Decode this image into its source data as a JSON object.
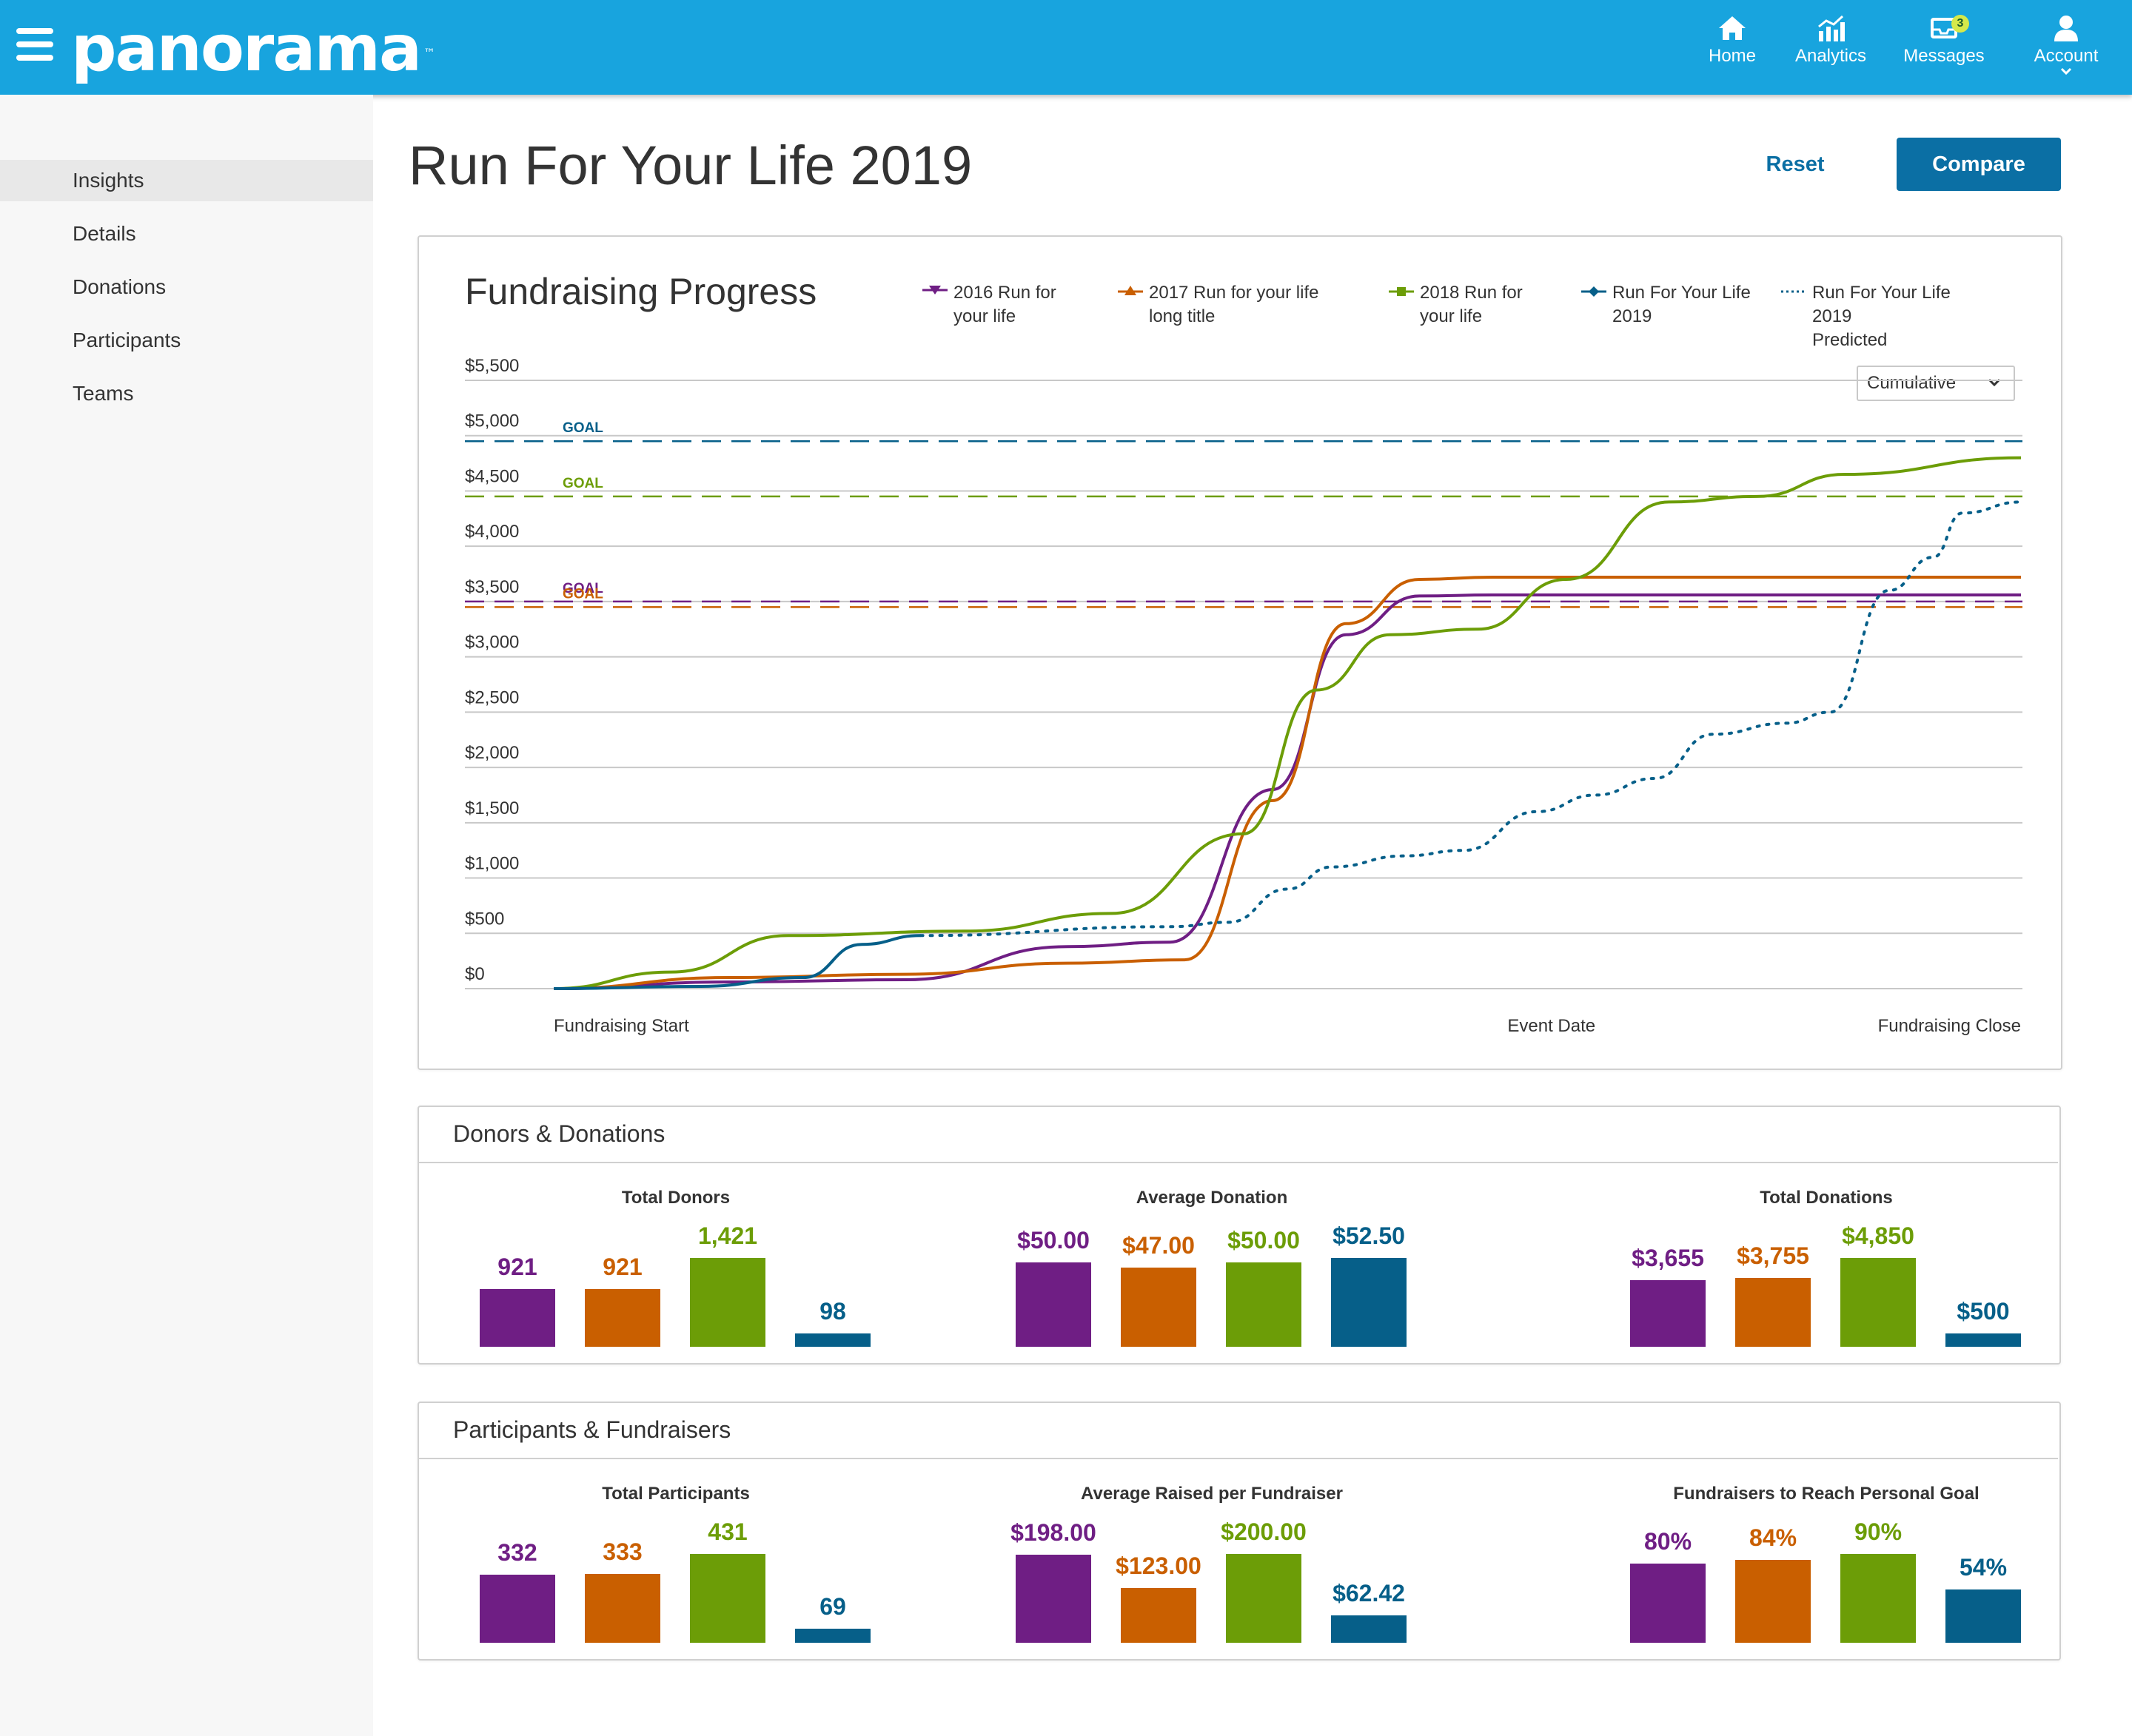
{
  "header": {
    "logo_text": "panorama",
    "logo_mark": "™",
    "nav": [
      {
        "label": "Home",
        "icon": "home-icon"
      },
      {
        "label": "Analytics",
        "icon": "analytics-icon"
      },
      {
        "label": "Messages",
        "icon": "messages-icon",
        "badge": "3"
      },
      {
        "label": "Account",
        "icon": "account-icon"
      }
    ]
  },
  "sidebar": {
    "items": [
      {
        "label": "Insights",
        "active": true
      },
      {
        "label": "Details"
      },
      {
        "label": "Donations"
      },
      {
        "label": "Participants"
      },
      {
        "label": "Teams"
      }
    ]
  },
  "page": {
    "title": "Run For Your Life 2019",
    "reset_label": "Reset",
    "compare_label": "Compare"
  },
  "colors": {
    "purple": "#6f1e84",
    "orange": "#c95f00",
    "green": "#6c9d07",
    "blue": "#065f89",
    "header": "#18a4de",
    "button": "#0b6fa4"
  },
  "fundraising": {
    "title": "Fundraising Progress",
    "dropdown_value": "Cumulative",
    "goal_label": "GOAL",
    "legend": [
      {
        "label": "2016 Run for\nyour life",
        "color": "#6f1e84",
        "marker": "triangle-down"
      },
      {
        "label": "2017 Run for your life\nlong title",
        "color": "#c95f00",
        "marker": "triangle-up"
      },
      {
        "label": "2018 Run for\nyour life",
        "color": "#6c9d07",
        "marker": "square"
      },
      {
        "label": "Run For Your Life\n2019",
        "color": "#065f89",
        "marker": "diamond"
      },
      {
        "label": "Run For Your Life 2019\nPredicted",
        "color": "#065f89",
        "marker": "dotted"
      }
    ]
  },
  "chart_data": [
    {
      "type": "line",
      "title": "Fundraising Progress",
      "xlabel": "",
      "ylabel": "",
      "ylim": [
        0,
        5500
      ],
      "yticks": [
        "$0",
        "$500",
        "$1,000",
        "$1,500",
        "$2,000",
        "$2,500",
        "$3,000",
        "$3,500",
        "$4,000",
        "$4,500",
        "$5,000",
        "$5,500"
      ],
      "x_tick_labels": [
        {
          "label": "Fundraising Start",
          "x": 0
        },
        {
          "label": "Event Date",
          "x": 68
        },
        {
          "label": "Fundraising Close",
          "x": 100
        }
      ],
      "grid": true,
      "xlim": [
        0,
        100
      ],
      "goals": [
        {
          "value": 4950,
          "color": "#065f89"
        },
        {
          "value": 4450,
          "color": "#6c9d07"
        },
        {
          "value": 3500,
          "color": "#6f1e84"
        },
        {
          "value": 3450,
          "color": "#c95f00"
        }
      ],
      "series": [
        {
          "name": "2016 Run for your life",
          "color": "#6f1e84",
          "style": "solid",
          "x": [
            0,
            12,
            24,
            35,
            42,
            49,
            54,
            59,
            64,
            100
          ],
          "y": [
            0,
            60,
            80,
            380,
            420,
            1800,
            3200,
            3550,
            3560,
            3560
          ]
        },
        {
          "name": "2017 Run for your life long title",
          "color": "#c95f00",
          "style": "solid",
          "x": [
            0,
            12,
            24,
            35,
            43,
            49,
            54,
            59,
            64,
            100
          ],
          "y": [
            0,
            100,
            130,
            230,
            260,
            1700,
            3300,
            3700,
            3720,
            3720
          ]
        },
        {
          "name": "2018 Run for your life",
          "color": "#6c9d07",
          "style": "solid",
          "x": [
            0,
            8,
            16,
            28,
            38,
            47,
            52,
            57,
            63,
            69,
            76,
            82,
            88,
            100
          ],
          "y": [
            0,
            150,
            480,
            520,
            680,
            1400,
            2700,
            3200,
            3250,
            3700,
            4400,
            4450,
            4650,
            4800
          ]
        },
        {
          "name": "Run For Your Life 2019",
          "color": "#065f89",
          "style": "solid",
          "x": [
            0,
            10,
            17,
            21,
            25
          ],
          "y": [
            0,
            20,
            100,
            400,
            480
          ]
        },
        {
          "name": "Run For Your Life 2019 Predicted",
          "color": "#065f89",
          "style": "dotted",
          "x": [
            25,
            42,
            46,
            50,
            53,
            58,
            62,
            67,
            71,
            75,
            79,
            84,
            87,
            91,
            94,
            96,
            100
          ],
          "y": [
            480,
            560,
            600,
            900,
            1100,
            1200,
            1250,
            1600,
            1750,
            1900,
            2300,
            2400,
            2500,
            3600,
            3900,
            4300,
            4400
          ]
        }
      ]
    },
    {
      "type": "bar",
      "title": "Total Donors",
      "categories": [
        "2016 Run for your life",
        "2017 Run for your life long title",
        "2018 Run for your life",
        "Run For Your Life 2019"
      ],
      "values": [
        921,
        921,
        1421,
        98
      ],
      "labels": [
        "921",
        "921",
        "1,421",
        "98"
      ]
    },
    {
      "type": "bar",
      "title": "Average Donation",
      "categories": [
        "2016 Run for your life",
        "2017 Run for your life long title",
        "2018 Run for your life",
        "Run For Your Life 2019"
      ],
      "values": [
        50.0,
        47.0,
        50.0,
        52.5
      ],
      "labels": [
        "$50.00",
        "$47.00",
        "$50.00",
        "$52.50"
      ]
    },
    {
      "type": "bar",
      "title": "Total Donations",
      "categories": [
        "2016 Run for your life",
        "2017 Run for your life long title",
        "2018 Run for your life",
        "Run For Your Life 2019"
      ],
      "values": [
        3655,
        3755,
        4850,
        500
      ],
      "labels": [
        "$3,655",
        "$3,755",
        "$4,850",
        "$500"
      ]
    },
    {
      "type": "bar",
      "title": "Total Participants",
      "categories": [
        "2016 Run for your life",
        "2017 Run for your life long title",
        "2018 Run for your life",
        "Run For Your Life 2019"
      ],
      "values": [
        332,
        333,
        431,
        69
      ],
      "labels": [
        "332",
        "333",
        "431",
        "69"
      ]
    },
    {
      "type": "bar",
      "title": "Average Raised per Fundraiser",
      "categories": [
        "2016 Run for your life",
        "2017 Run for your life long title",
        "2018 Run for your life",
        "Run For Your Life 2019"
      ],
      "values": [
        198.0,
        123.0,
        200.0,
        62.42
      ],
      "labels": [
        "$198.00",
        "$123.00",
        "$200.00",
        "$62.42"
      ]
    },
    {
      "type": "bar",
      "title": "Fundraisers to Reach Personal Goal",
      "categories": [
        "2016 Run for your life",
        "2017 Run for your life long title",
        "2018 Run for your life",
        "Run For Your Life 2019"
      ],
      "values": [
        80,
        84,
        90,
        54
      ],
      "labels": [
        "80%",
        "84%",
        "90%",
        "54%"
      ]
    }
  ],
  "sections": {
    "donors_title": "Donors & Donations",
    "participants_title": "Participants & Fundraisers"
  }
}
